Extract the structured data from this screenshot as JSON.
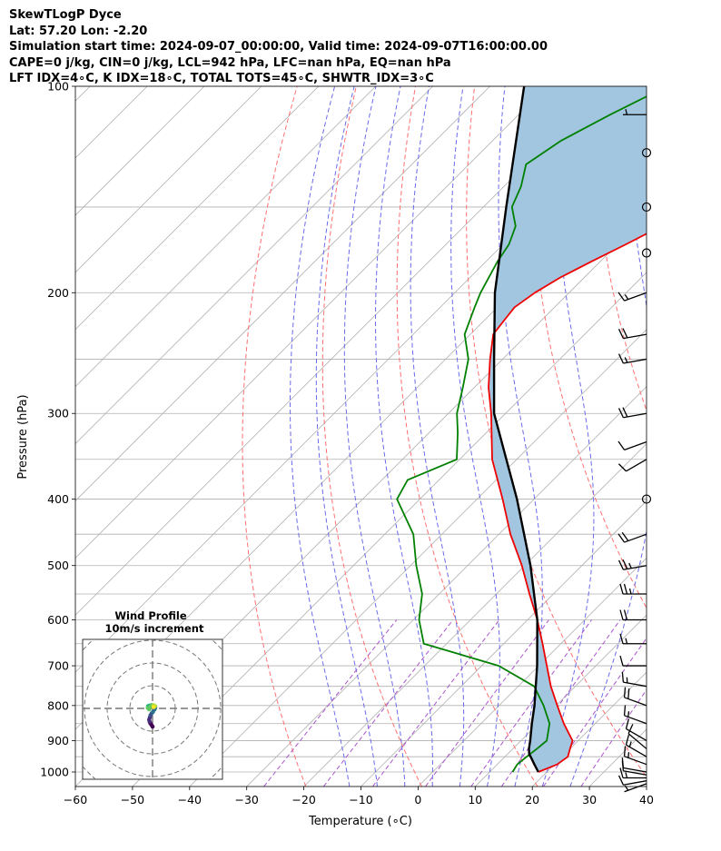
{
  "header": {
    "line1": "SkewTLogP Dyce",
    "line2": "Lat: 57.20   Lon: -2.20",
    "line3": "Simulation start time: 2024-09-07_00:00:00, Valid time: 2024-09-07T16:00:00.00",
    "line4": "CAPE=0 j/kg, CIN=0 j/kg, LCL=942 hPa, LFC=nan hPa, EQ=nan hPa",
    "line5": "LFT IDX=4∘C, K IDX=18∘C, TOTAL TOTS=45∘C, SHWTR_IDX=3∘C"
  },
  "chart_data": [
    {
      "type": "line",
      "subtype": "skew-t log-p",
      "xlabel": "Temperature (∘C)",
      "ylabel": "Pressure (hPa)",
      "xlim": [
        -60,
        40
      ],
      "ylim": [
        1050,
        100
      ],
      "y_scale": "log",
      "skew": 45,
      "grid": true,
      "x_ticks": [
        "−60",
        "−50",
        "−40",
        "−30",
        "−20",
        "−10",
        "0",
        "10",
        "20",
        "30",
        "40"
      ],
      "y_ticks": [
        "100",
        "200",
        "300",
        "400",
        "500",
        "600",
        "700",
        "800",
        "900",
        "1000"
      ],
      "y_tick_values": [
        100,
        200,
        300,
        400,
        500,
        600,
        700,
        800,
        900,
        1000
      ],
      "dry_adiabats_theta_K": [
        250,
        270,
        290,
        310,
        330,
        350,
        370,
        390,
        410,
        430,
        450
      ],
      "moist_adiabats_T_C": [
        -15,
        -10,
        -5,
        0,
        5,
        10,
        15,
        20,
        25
      ],
      "mixing_ratio_lines_gkg": [
        0.4,
        1,
        2,
        4,
        7,
        10,
        16,
        24
      ],
      "colors": {
        "temperature": "#ee0000",
        "dewpoint": "#008000",
        "parcel": "#000000",
        "cape_fill": "#a3c6e0",
        "dry_adiabat": "#ff7070",
        "moist_adiabat": "#6a6ae8",
        "mixing_ratio": "#aa55cc",
        "isotherm": "#b0b0b0"
      },
      "series": [
        {
          "name": "Temperature",
          "pressure": [
            1000,
            975,
            950,
            925,
            900,
            850,
            800,
            750,
            700,
            650,
            600,
            550,
            500,
            450,
            400,
            350,
            300,
            275,
            250,
            230,
            220,
            210,
            200,
            190,
            180,
            170,
            160,
            150,
            140,
            130,
            120,
            110,
            100
          ],
          "values": [
            18.5,
            20.5,
            21.0,
            20.0,
            19.0,
            14.5,
            10.2,
            5.7,
            1.4,
            -3.2,
            -8.3,
            -14.2,
            -20.5,
            -28.0,
            -35.5,
            -44.3,
            -52.5,
            -57.5,
            -62.2,
            -66.0,
            -66.5,
            -67.0,
            -66.0,
            -64.2,
            -61.5,
            -58.5,
            -55.5,
            -53.0,
            -50.0,
            -46.8,
            -44.5,
            -42.8,
            -41.5
          ]
        },
        {
          "name": "Dewpoint",
          "pressure": [
            1000,
            975,
            950,
            925,
            900,
            850,
            800,
            750,
            700,
            650,
            600,
            550,
            500,
            450,
            400,
            375,
            350,
            320,
            300,
            275,
            250,
            230,
            210,
            200,
            180,
            170,
            160,
            150,
            140,
            130,
            120,
            110,
            100
          ],
          "values": [
            14.0,
            13.5,
            13.8,
            14.2,
            14.5,
            12.0,
            7.8,
            2.8,
            -7.0,
            -24.0,
            -29.0,
            -33.0,
            -39.0,
            -45.0,
            -54.0,
            -55.5,
            -50.5,
            -55.0,
            -58.5,
            -62.0,
            -66.0,
            -71.0,
            -74.0,
            -75.5,
            -78.0,
            -79.0,
            -81.0,
            -85.0,
            -87.0,
            -90.0,
            -88.0,
            -84.0,
            -79.0
          ]
        },
        {
          "name": "Parcel",
          "pressure": [
            1000,
            975,
            950,
            942,
            925,
            900,
            850,
            800,
            700,
            600,
            500,
            400,
            300,
            250,
            200,
            150,
            100
          ],
          "values": [
            18.5,
            16.5,
            14.5,
            13.8,
            12.8,
            11.6,
            8.9,
            6.2,
            -0.3,
            -8.3,
            -19.0,
            -33.0,
            -52.0,
            -61.5,
            -73.0,
            -86.0,
            -104.0
          ]
        }
      ],
      "wind_barbs_pressure": [
        1040,
        1030,
        1020,
        1010,
        1000,
        975,
        950,
        925,
        900,
        850,
        800,
        750,
        700,
        650,
        600,
        550,
        500,
        450,
        400,
        350,
        330,
        300,
        250,
        230,
        200,
        175,
        150,
        125,
        110
      ],
      "wind_barbs_speed_kt": [
        5,
        10,
        15,
        10,
        10,
        15,
        15,
        10,
        10,
        15,
        20,
        15,
        10,
        15,
        20,
        25,
        25,
        20,
        0,
        10,
        10,
        20,
        15,
        20,
        15,
        0,
        0,
        0,
        5
      ],
      "wind_barbs_dir_deg": [
        250,
        260,
        270,
        280,
        280,
        290,
        300,
        310,
        300,
        290,
        290,
        280,
        270,
        270,
        270,
        270,
        260,
        250,
        0,
        240,
        250,
        260,
        260,
        260,
        250,
        0,
        0,
        0,
        270
      ]
    },
    {
      "type": "scatter",
      "subtype": "hodograph",
      "title": "Wind Profile",
      "subtitle": "10m/s increment",
      "ring_interval_ms": 10,
      "u": [
        0.0,
        -0.5,
        -1.0,
        -1.3,
        -1.5,
        -1.2,
        -0.9,
        -0.4,
        0.2,
        0.9,
        1.2,
        0.8,
        0.4,
        -0.3,
        -1.2,
        -2.0,
        -2.1,
        -1.5,
        -0.8,
        0.4,
        1.1,
        0.5
      ],
      "v": [
        -8.0,
        -7.2,
        -6.5,
        -5.8,
        -5.0,
        -4.0,
        -3.0,
        -2.2,
        -1.5,
        -0.4,
        0.3,
        0.8,
        1.2,
        1.4,
        1.3,
        1.0,
        0.2,
        -0.4,
        1.0,
        1.4,
        1.0,
        0.6
      ]
    }
  ]
}
